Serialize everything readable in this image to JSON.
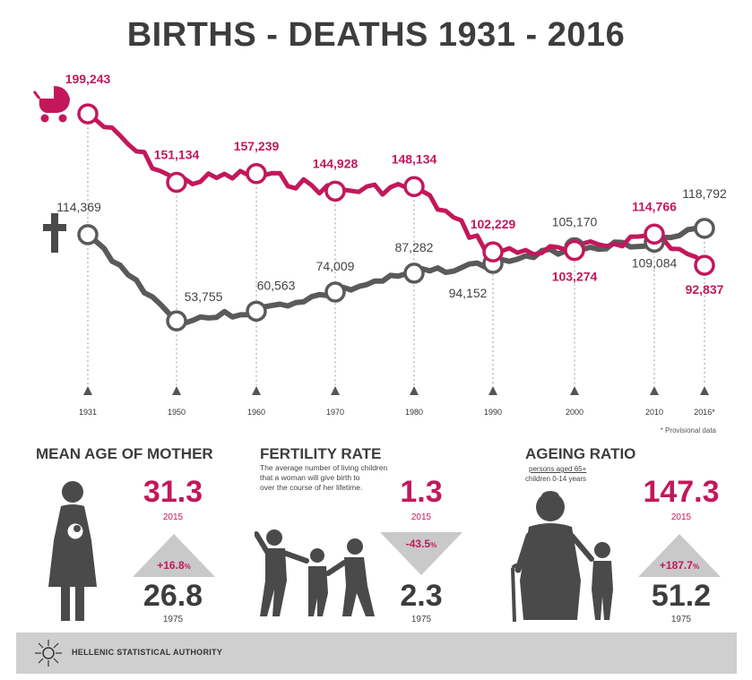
{
  "title": "BIRTHS - DEATHS 1931 - 2016",
  "colors": {
    "births": "#c2185b",
    "deaths": "#5a5a5a",
    "text_dark": "#3d3d3d"
  },
  "chart_data": {
    "type": "line",
    "title": "BIRTHS - DEATHS 1931 - 2016",
    "x_ticks": [
      "1931",
      "1950",
      "1960",
      "1970",
      "1980",
      "1990",
      "2000",
      "2010",
      "2016*"
    ],
    "ylim": [
      40000,
      210000
    ],
    "grid": false,
    "series": [
      {
        "icon": "baby-carriage-icon",
        "points": [
          {
            "x": 1931,
            "y": 199243,
            "label": "199,243"
          },
          {
            "x": 1950,
            "y": 151134,
            "label": "151,134"
          },
          {
            "x": 1960,
            "y": 157239,
            "label": "157,239"
          },
          {
            "x": 1970,
            "y": 144928,
            "label": "144,928"
          },
          {
            "x": 1980,
            "y": 148134,
            "label": "148,134"
          },
          {
            "x": 1990,
            "y": 102229,
            "label": "102,229"
          },
          {
            "x": 2000,
            "y": 103274,
            "label": "103,274"
          },
          {
            "x": 2010,
            "y": 114766,
            "label": "114,766"
          },
          {
            "x": 2016,
            "y": 92837,
            "label": "92,837"
          }
        ]
      },
      {
        "icon": "cross-icon",
        "points": [
          {
            "x": 1931,
            "y": 114369,
            "label": "114,369"
          },
          {
            "x": 1950,
            "y": 53755,
            "label": "53,755"
          },
          {
            "x": 1960,
            "y": 60563,
            "label": "60,563"
          },
          {
            "x": 1970,
            "y": 74009,
            "label": "74,009"
          },
          {
            "x": 1980,
            "y": 87282,
            "label": "87,282"
          },
          {
            "x": 1990,
            "y": 94152,
            "label": "94,152"
          },
          {
            "x": 2000,
            "y": 105170,
            "label": "105,170"
          },
          {
            "x": 2010,
            "y": 109084,
            "label": "109,084"
          },
          {
            "x": 2016,
            "y": 118792,
            "label": "118,792"
          }
        ]
      }
    ],
    "note": "* Provisional data"
  },
  "stats": {
    "mother": {
      "title": "MEAN AGE OF MOTHER",
      "value_now": "31.3",
      "year_now": "2015",
      "change": "+16.8",
      "change_unit": "%",
      "value_then": "26.8",
      "year_then": "1975",
      "icon": "mother-with-baby-icon"
    },
    "fertility": {
      "title": "FERTILITY RATE",
      "desc_1": "The average number of living children",
      "desc_2": "that a woman will give birth to",
      "desc_3": "over the course of her lifetime.",
      "value_now": "1.3",
      "year_now": "2015",
      "change": "-43.5",
      "change_unit": "%",
      "value_then": "2.3",
      "year_then": "1975",
      "icon": "children-playing-icon"
    },
    "ageing": {
      "title": "AGEING RATIO",
      "ratio_top": "persons aged 65+",
      "ratio_bottom": "children 0-14 years",
      "value_now": "147.3",
      "year_now": "2015",
      "change": "+187.7",
      "change_unit": "%",
      "value_then": "51.2",
      "year_then": "1975",
      "icon": "grandmother-and-child-icon"
    }
  },
  "footer": {
    "label": "HELLENIC STATISTICAL AUTHORITY",
    "icon": "elstat-logo-icon"
  }
}
